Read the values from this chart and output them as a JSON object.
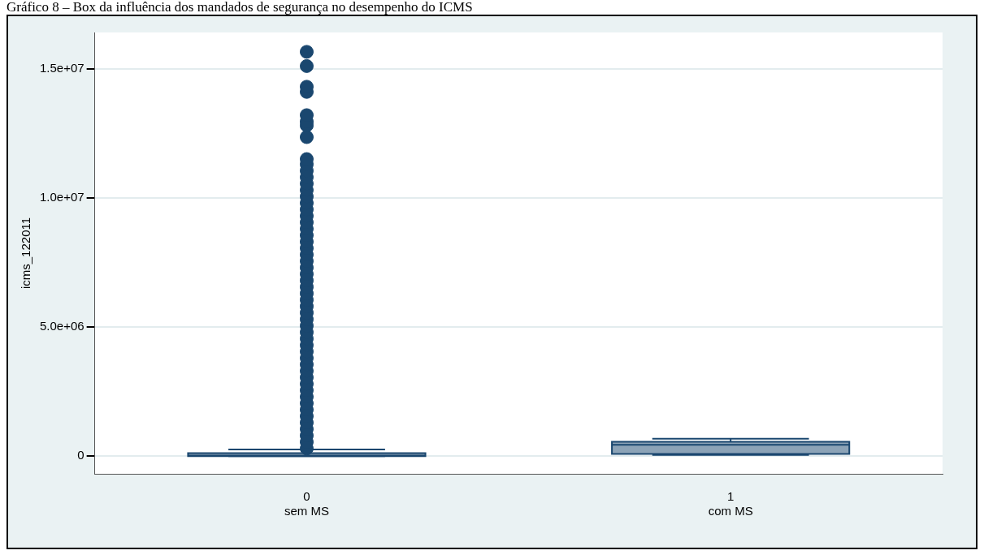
{
  "chart_data": {
    "type": "box",
    "title": "Gráfico 8 – Box da influência dos mandados de segurança no desempenho do ICMS",
    "ylabel": "icms_122011",
    "categories": [
      "0\nsem MS",
      "1\ncom MS"
    ],
    "color": "#1a476f",
    "boxes": [
      {
        "low": 0,
        "q1": 0,
        "median": 30000,
        "q3": 120000,
        "high": 260000,
        "outliers": [
          300000,
          550000,
          800000,
          1050000,
          1300000,
          1550000,
          1800000,
          2050000,
          2300000,
          2550000,
          2800000,
          3050000,
          3300000,
          3550000,
          3800000,
          4050000,
          4300000,
          4550000,
          4800000,
          5050000,
          5300000,
          5550000,
          5800000,
          6050000,
          6300000,
          6550000,
          6800000,
          7050000,
          7300000,
          7550000,
          7800000,
          8050000,
          8300000,
          8550000,
          8800000,
          9050000,
          9300000,
          9550000,
          9800000,
          10050000,
          10300000,
          10550000,
          10800000,
          11050000,
          11300000,
          11500000,
          12350000,
          12800000,
          12950000,
          13200000,
          14100000,
          14300000,
          15100000,
          15650000
        ]
      },
      {
        "low": 50000,
        "q1": 90000,
        "median": 440000,
        "q3": 560000,
        "high": 680000
      }
    ],
    "ylim": [
      -680000,
      16400000
    ],
    "yticks": [
      0,
      {
        "value": 5000000,
        "label": "5.0e+06"
      },
      {
        "value": 10000000,
        "label": "1.0e+07"
      },
      {
        "value": 15000000,
        "label": "1.5e+07"
      }
    ],
    "grid": "y",
    "legend": false,
    "marker": "circle"
  }
}
